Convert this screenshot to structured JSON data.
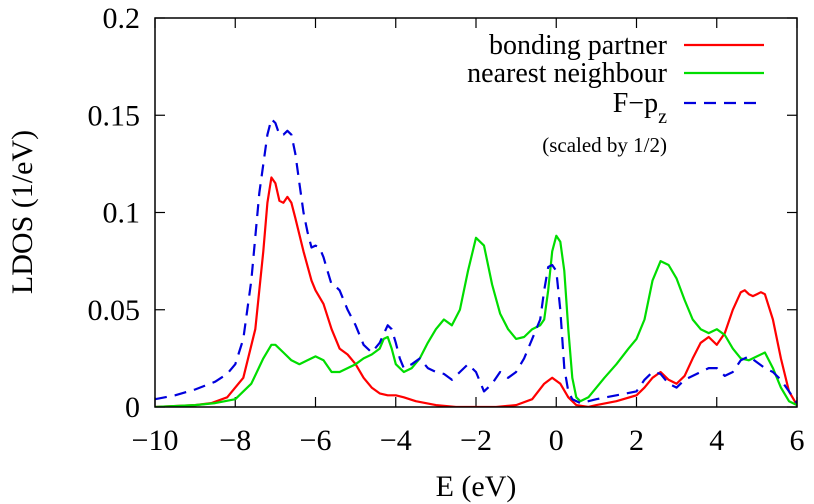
{
  "chart_data": {
    "type": "line",
    "xlabel": "E (eV)",
    "ylabel": "LDOS (1/eV)",
    "xlim": [
      -10,
      6
    ],
    "ylim": [
      0,
      0.2
    ],
    "xticks": [
      -10,
      -8,
      -6,
      -4,
      -2,
      0,
      2,
      4,
      6
    ],
    "xtick_labels": [
      "−10",
      "−8",
      "−6",
      "−4",
      "−2",
      "0",
      "2",
      "4",
      "6"
    ],
    "yticks": [
      0,
      0.05,
      0.1,
      0.15,
      0.2
    ],
    "ytick_labels": [
      "0",
      "0.05",
      "0.1",
      "0.15",
      "0.2"
    ],
    "grid": false,
    "legend_position": "top-right",
    "annotation": "(scaled by 1/2)",
    "series": [
      {
        "name": "bonding partner",
        "color": "#ff0000",
        "dash": "solid",
        "x": [
          -10,
          -9,
          -8.6,
          -8.2,
          -7.8,
          -7.5,
          -7.3,
          -7.2,
          -7.1,
          -7.0,
          -6.9,
          -6.8,
          -6.7,
          -6.6,
          -6.5,
          -6.3,
          -6.1,
          -6.0,
          -5.8,
          -5.6,
          -5.4,
          -5.2,
          -5.0,
          -4.8,
          -4.6,
          -4.4,
          -4.2,
          -4.0,
          -3.8,
          -3.5,
          -3.0,
          -2.5,
          -2.0,
          -1.5,
          -1.0,
          -0.6,
          -0.3,
          -0.1,
          0.1,
          0.3,
          0.5,
          0.8,
          1.0,
          1.5,
          2.0,
          2.2,
          2.4,
          2.6,
          2.8,
          3.0,
          3.2,
          3.4,
          3.6,
          3.8,
          4.0,
          4.2,
          4.4,
          4.6,
          4.7,
          4.8,
          4.9,
          5.0,
          5.1,
          5.2,
          5.4,
          5.6,
          5.8,
          6.0
        ],
        "y": [
          0.0,
          0.001,
          0.002,
          0.005,
          0.015,
          0.04,
          0.08,
          0.105,
          0.118,
          0.115,
          0.106,
          0.105,
          0.108,
          0.105,
          0.097,
          0.08,
          0.065,
          0.06,
          0.053,
          0.04,
          0.03,
          0.027,
          0.022,
          0.015,
          0.01,
          0.007,
          0.006,
          0.006,
          0.005,
          0.003,
          0.001,
          0.0,
          0.0,
          0.0,
          0.001,
          0.004,
          0.012,
          0.015,
          0.012,
          0.005,
          0.001,
          0.0,
          0.001,
          0.003,
          0.006,
          0.01,
          0.015,
          0.018,
          0.014,
          0.012,
          0.016,
          0.025,
          0.033,
          0.036,
          0.032,
          0.038,
          0.05,
          0.059,
          0.06,
          0.058,
          0.057,
          0.058,
          0.059,
          0.058,
          0.045,
          0.025,
          0.008,
          0.001
        ]
      },
      {
        "name": "nearest neighbour",
        "color": "#00dd00",
        "dash": "solid",
        "x": [
          -10,
          -9,
          -8.5,
          -8.0,
          -7.6,
          -7.3,
          -7.1,
          -7.0,
          -6.8,
          -6.6,
          -6.4,
          -6.2,
          -6.0,
          -5.8,
          -5.6,
          -5.4,
          -5.2,
          -5.0,
          -4.8,
          -4.6,
          -4.4,
          -4.3,
          -4.2,
          -4.1,
          -4.0,
          -3.8,
          -3.6,
          -3.4,
          -3.2,
          -3.0,
          -2.8,
          -2.6,
          -2.4,
          -2.2,
          -2.0,
          -1.8,
          -1.6,
          -1.4,
          -1.2,
          -1.0,
          -0.8,
          -0.6,
          -0.4,
          -0.3,
          -0.2,
          -0.1,
          0.0,
          0.1,
          0.2,
          0.3,
          0.4,
          0.5,
          0.6,
          0.8,
          1.0,
          1.2,
          1.5,
          1.8,
          2.0,
          2.2,
          2.4,
          2.6,
          2.8,
          3.0,
          3.2,
          3.4,
          3.6,
          3.8,
          4.0,
          4.2,
          4.4,
          4.6,
          4.8,
          5.0,
          5.2,
          5.4,
          5.6,
          5.8,
          6.0
        ],
        "y": [
          0.0,
          0.001,
          0.002,
          0.004,
          0.012,
          0.025,
          0.032,
          0.032,
          0.028,
          0.024,
          0.022,
          0.024,
          0.026,
          0.024,
          0.018,
          0.018,
          0.02,
          0.022,
          0.025,
          0.027,
          0.03,
          0.035,
          0.036,
          0.03,
          0.022,
          0.018,
          0.02,
          0.025,
          0.033,
          0.04,
          0.045,
          0.042,
          0.05,
          0.07,
          0.087,
          0.083,
          0.063,
          0.048,
          0.04,
          0.035,
          0.036,
          0.04,
          0.042,
          0.045,
          0.06,
          0.08,
          0.088,
          0.085,
          0.07,
          0.04,
          0.015,
          0.005,
          0.003,
          0.005,
          0.01,
          0.015,
          0.022,
          0.03,
          0.035,
          0.045,
          0.065,
          0.075,
          0.073,
          0.066,
          0.055,
          0.045,
          0.04,
          0.038,
          0.04,
          0.037,
          0.03,
          0.025,
          0.024,
          0.026,
          0.028,
          0.02,
          0.01,
          0.003,
          0.001
        ]
      },
      {
        "name": "F−p_z",
        "color": "#0000dd",
        "dash": "dashed",
        "x": [
          -10,
          -9.5,
          -9.0,
          -8.5,
          -8.2,
          -8.0,
          -7.8,
          -7.6,
          -7.4,
          -7.2,
          -7.1,
          -7.0,
          -6.9,
          -6.8,
          -6.7,
          -6.6,
          -6.5,
          -6.4,
          -6.3,
          -6.2,
          -6.1,
          -6.0,
          -5.9,
          -5.8,
          -5.7,
          -5.6,
          -5.5,
          -5.4,
          -5.3,
          -5.2,
          -5.0,
          -4.8,
          -4.6,
          -4.4,
          -4.2,
          -4.1,
          -4.0,
          -3.9,
          -3.8,
          -3.6,
          -3.4,
          -3.2,
          -3.0,
          -2.8,
          -2.6,
          -2.4,
          -2.2,
          -2.0,
          -1.8,
          -1.6,
          -1.4,
          -1.2,
          -1.0,
          -0.8,
          -0.6,
          -0.4,
          -0.3,
          -0.2,
          -0.1,
          0.0,
          0.1,
          0.2,
          0.3,
          0.4,
          0.6,
          0.8,
          1.0,
          1.5,
          2.0,
          2.2,
          2.4,
          2.6,
          2.8,
          3.0,
          3.2,
          3.4,
          3.6,
          3.8,
          4.0,
          4.2,
          4.4,
          4.6,
          4.8,
          5.0,
          5.2,
          5.4,
          5.6,
          5.8,
          6.0
        ],
        "y": [
          0.004,
          0.006,
          0.009,
          0.013,
          0.017,
          0.022,
          0.035,
          0.065,
          0.11,
          0.14,
          0.148,
          0.146,
          0.14,
          0.14,
          0.142,
          0.14,
          0.13,
          0.115,
          0.1,
          0.09,
          0.082,
          0.083,
          0.082,
          0.077,
          0.07,
          0.063,
          0.062,
          0.06,
          0.055,
          0.05,
          0.042,
          0.032,
          0.028,
          0.033,
          0.042,
          0.04,
          0.033,
          0.025,
          0.02,
          0.022,
          0.025,
          0.02,
          0.018,
          0.017,
          0.014,
          0.018,
          0.022,
          0.018,
          0.008,
          0.012,
          0.018,
          0.015,
          0.018,
          0.025,
          0.035,
          0.045,
          0.06,
          0.072,
          0.073,
          0.07,
          0.05,
          0.02,
          0.008,
          0.004,
          0.002,
          0.003,
          0.004,
          0.006,
          0.008,
          0.014,
          0.018,
          0.017,
          0.012,
          0.01,
          0.014,
          0.016,
          0.018,
          0.02,
          0.02,
          0.016,
          0.018,
          0.024,
          0.026,
          0.023,
          0.02,
          0.018,
          0.014,
          0.008,
          0.002
        ]
      }
    ]
  }
}
